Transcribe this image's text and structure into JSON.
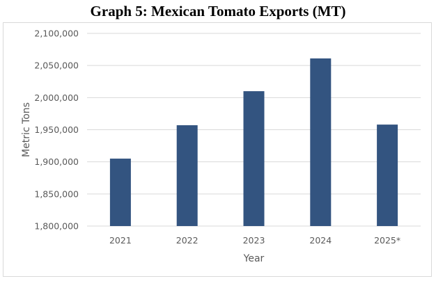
{
  "chart_data": {
    "type": "bar",
    "title": "Graph 5: Mexican Tomato Exports (MT)",
    "xlabel": "Year",
    "ylabel": "Metric Tons",
    "categories": [
      "2021",
      "2022",
      "2023",
      "2024",
      "2025*"
    ],
    "values": [
      1905000,
      1957000,
      2010000,
      2061000,
      1958000
    ],
    "ylim": [
      1800000,
      2100000
    ],
    "yticks": [
      1800000,
      1850000,
      1900000,
      1950000,
      2000000,
      2050000,
      2100000
    ],
    "ytick_labels": [
      "1,800,000",
      "1,850,000",
      "1,900,000",
      "1,950,000",
      "2,000,000",
      "2,050,000",
      "2,100,000"
    ],
    "grid": true,
    "bar_color": "#335480",
    "grid_color": "#d9d9d9"
  }
}
